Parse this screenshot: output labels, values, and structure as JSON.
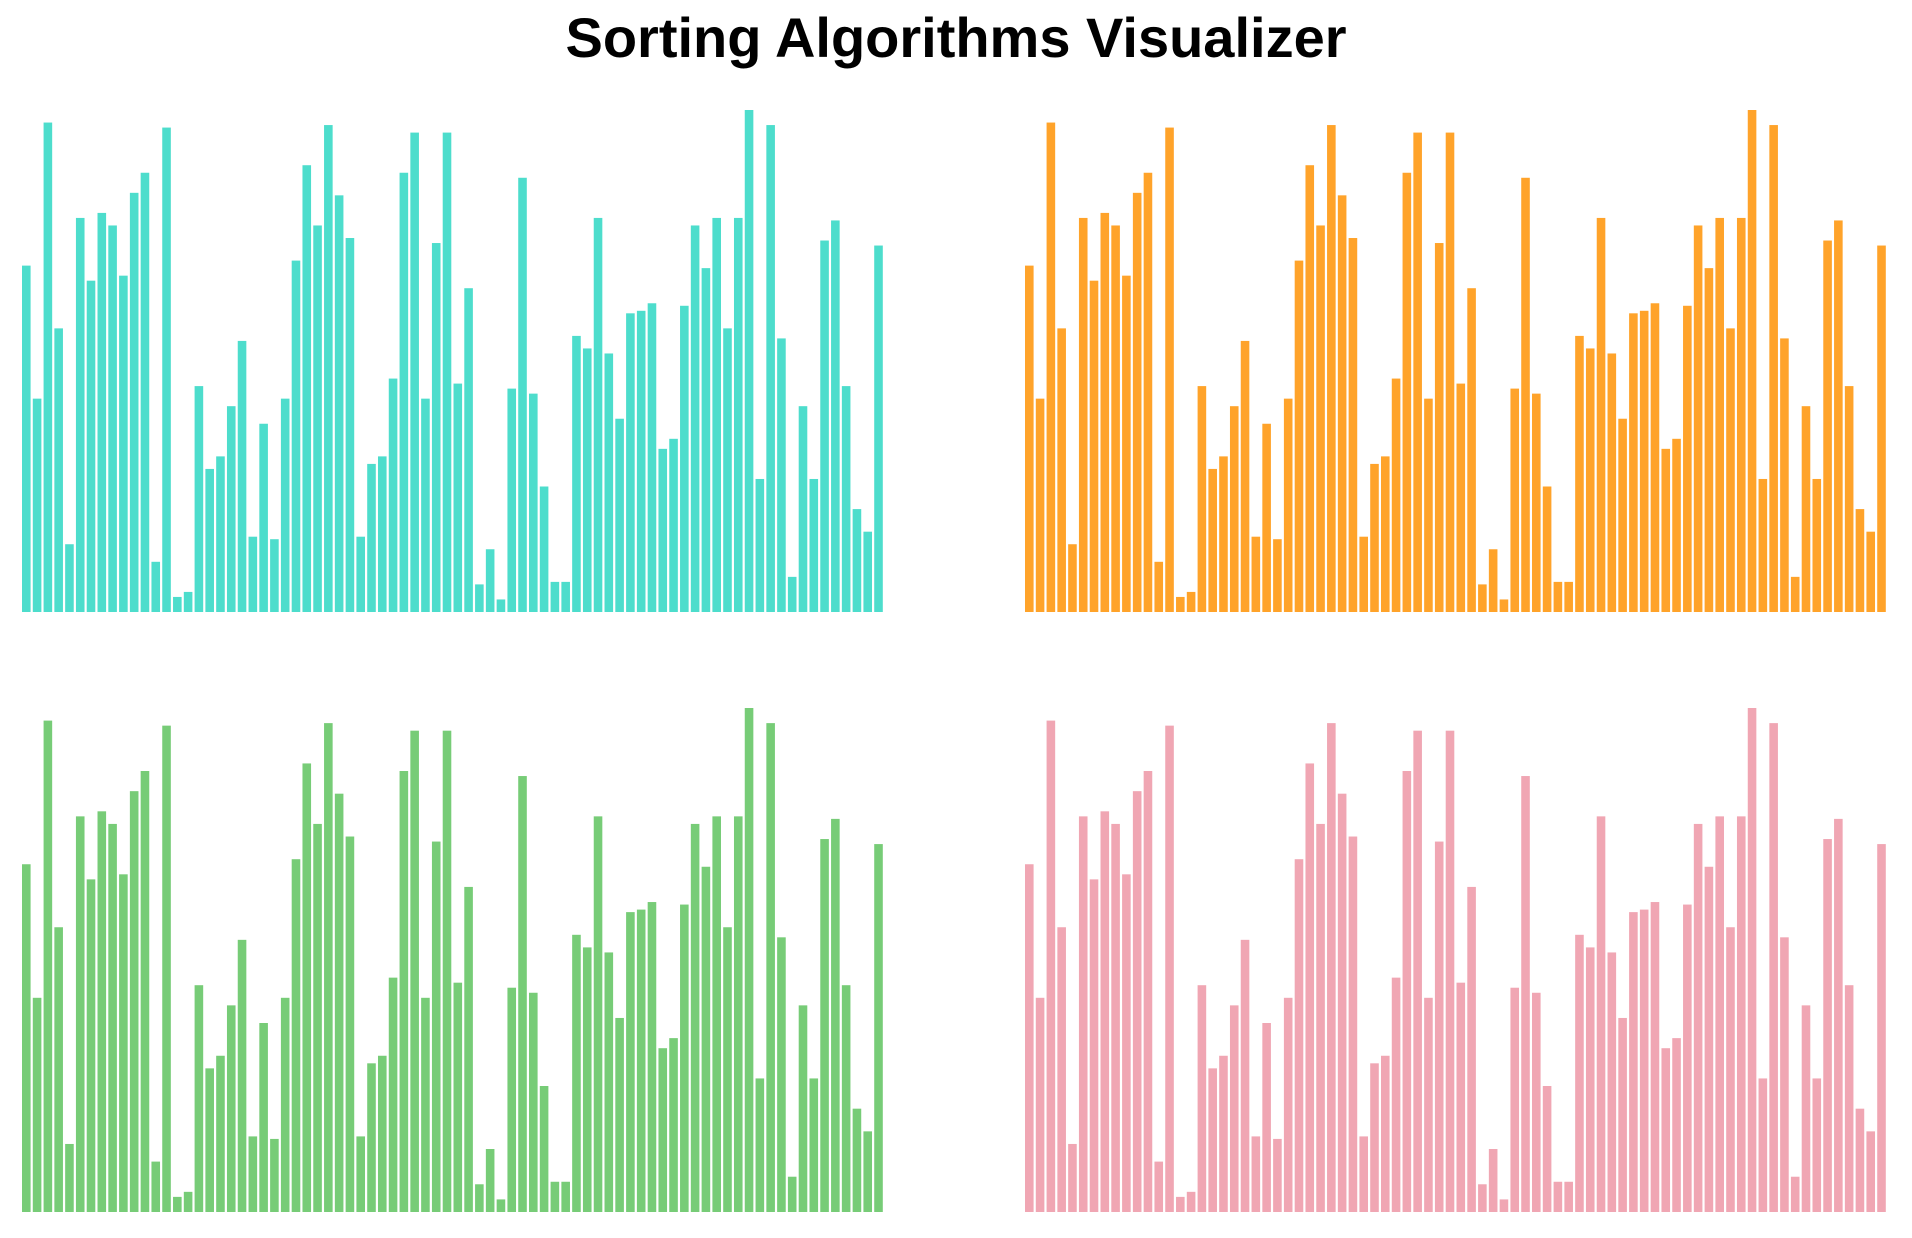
{
  "title": "Sorting Algorithms Visualizer",
  "chart_data": [
    {
      "type": "bar",
      "color": "#4dddcc",
      "ylim": [
        0,
        1
      ],
      "grid": false,
      "values": [
        0.69,
        0.425,
        0.975,
        0.565,
        0.135,
        0.785,
        0.66,
        0.795,
        0.77,
        0.67,
        0.835,
        0.875,
        0.1,
        0.965,
        0.03,
        0.04,
        0.45,
        0.285,
        0.31,
        0.41,
        0.54,
        0.15,
        0.375,
        0.145,
        0.425,
        0.7,
        0.89,
        0.77,
        0.97,
        0.83,
        0.745,
        0.15,
        0.295,
        0.31,
        0.465,
        0.875,
        0.955,
        0.425,
        0.735,
        0.955,
        0.455,
        0.645,
        0.055,
        0.125,
        0.025,
        0.445,
        0.865,
        0.435,
        0.25,
        0.06,
        0.06,
        0.55,
        0.525,
        0.785,
        0.515,
        0.385,
        0.595,
        0.6,
        0.615,
        0.325,
        0.345,
        0.61,
        0.77,
        0.685,
        0.785,
        0.565,
        0.785,
        1.0,
        0.265,
        0.97,
        0.545,
        0.07,
        0.41,
        0.265,
        0.74,
        0.78,
        0.45,
        0.205,
        0.16,
        0.73
      ]
    },
    {
      "type": "bar",
      "color": "#ffa32a",
      "ylim": [
        0,
        1
      ],
      "grid": false,
      "values": [
        0.69,
        0.425,
        0.975,
        0.565,
        0.135,
        0.785,
        0.66,
        0.795,
        0.77,
        0.67,
        0.835,
        0.875,
        0.1,
        0.965,
        0.03,
        0.04,
        0.45,
        0.285,
        0.31,
        0.41,
        0.54,
        0.15,
        0.375,
        0.145,
        0.425,
        0.7,
        0.89,
        0.77,
        0.97,
        0.83,
        0.745,
        0.15,
        0.295,
        0.31,
        0.465,
        0.875,
        0.955,
        0.425,
        0.735,
        0.955,
        0.455,
        0.645,
        0.055,
        0.125,
        0.025,
        0.445,
        0.865,
        0.435,
        0.25,
        0.06,
        0.06,
        0.55,
        0.525,
        0.785,
        0.515,
        0.385,
        0.595,
        0.6,
        0.615,
        0.325,
        0.345,
        0.61,
        0.77,
        0.685,
        0.785,
        0.565,
        0.785,
        1.0,
        0.265,
        0.97,
        0.545,
        0.07,
        0.41,
        0.265,
        0.74,
        0.78,
        0.45,
        0.205,
        0.16,
        0.73
      ]
    },
    {
      "type": "bar",
      "color": "#77cc77",
      "ylim": [
        0,
        1
      ],
      "grid": false,
      "values": [
        0.69,
        0.425,
        0.975,
        0.565,
        0.135,
        0.785,
        0.66,
        0.795,
        0.77,
        0.67,
        0.835,
        0.875,
        0.1,
        0.965,
        0.03,
        0.04,
        0.45,
        0.285,
        0.31,
        0.41,
        0.54,
        0.15,
        0.375,
        0.145,
        0.425,
        0.7,
        0.89,
        0.77,
        0.97,
        0.83,
        0.745,
        0.15,
        0.295,
        0.31,
        0.465,
        0.875,
        0.955,
        0.425,
        0.735,
        0.955,
        0.455,
        0.645,
        0.055,
        0.125,
        0.025,
        0.445,
        0.865,
        0.435,
        0.25,
        0.06,
        0.06,
        0.55,
        0.525,
        0.785,
        0.515,
        0.385,
        0.595,
        0.6,
        0.615,
        0.325,
        0.345,
        0.61,
        0.77,
        0.685,
        0.785,
        0.565,
        0.785,
        1.0,
        0.265,
        0.97,
        0.545,
        0.07,
        0.41,
        0.265,
        0.74,
        0.78,
        0.45,
        0.205,
        0.16,
        0.73
      ]
    },
    {
      "type": "bar",
      "color": "#f0a6b3",
      "ylim": [
        0,
        1
      ],
      "grid": false,
      "values": [
        0.69,
        0.425,
        0.975,
        0.565,
        0.135,
        0.785,
        0.66,
        0.795,
        0.77,
        0.67,
        0.835,
        0.875,
        0.1,
        0.965,
        0.03,
        0.04,
        0.45,
        0.285,
        0.31,
        0.41,
        0.54,
        0.15,
        0.375,
        0.145,
        0.425,
        0.7,
        0.89,
        0.77,
        0.97,
        0.83,
        0.745,
        0.15,
        0.295,
        0.31,
        0.465,
        0.875,
        0.955,
        0.425,
        0.735,
        0.955,
        0.455,
        0.645,
        0.055,
        0.125,
        0.025,
        0.445,
        0.865,
        0.435,
        0.25,
        0.06,
        0.06,
        0.55,
        0.525,
        0.785,
        0.515,
        0.385,
        0.595,
        0.6,
        0.615,
        0.325,
        0.345,
        0.61,
        0.77,
        0.685,
        0.785,
        0.565,
        0.785,
        1.0,
        0.265,
        0.97,
        0.545,
        0.07,
        0.41,
        0.265,
        0.74,
        0.78,
        0.45,
        0.205,
        0.16,
        0.73
      ]
    }
  ]
}
